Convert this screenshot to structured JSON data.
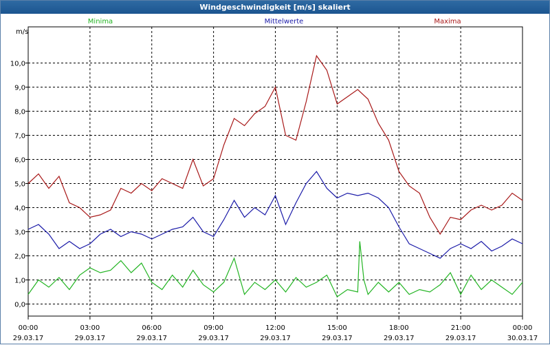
{
  "window": {
    "title": "Windgeschwindigkeit [m/s] skaliert"
  },
  "colors": {
    "min": "#22b422",
    "mean": "#1a1aa8",
    "max": "#a81818",
    "titlebar": "#1f5b96"
  },
  "chart_data": {
    "type": "line",
    "title": "Windgeschwindigkeit [m/s] skaliert",
    "ylabel": "m/s",
    "ylim": [
      -0.5,
      11.5
    ],
    "xlim_hours": [
      0,
      24
    ],
    "grid": true,
    "yticks": [
      "0,0",
      "1,0",
      "2,0",
      "3,0",
      "4,0",
      "5,0",
      "6,0",
      "7,0",
      "8,0",
      "9,0",
      "10,0"
    ],
    "xticks": [
      {
        "time": "00:00",
        "date": "29.03.17"
      },
      {
        "time": "03:00",
        "date": "29.03.17"
      },
      {
        "time": "06:00",
        "date": "29.03.17"
      },
      {
        "time": "09:00",
        "date": "29.03.17"
      },
      {
        "time": "12:00",
        "date": "29.03.17"
      },
      {
        "time": "15:00",
        "date": "29.03.17"
      },
      {
        "time": "18:00",
        "date": "29.03.17"
      },
      {
        "time": "21:00",
        "date": "29.03.17"
      },
      {
        "time": "00:00",
        "date": "30.03.17"
      }
    ],
    "legend": [
      "Minima",
      "Mittelwerte",
      "Maxima"
    ],
    "series": [
      {
        "name": "Minima",
        "key": "min",
        "x": [
          0,
          0.5,
          1,
          1.5,
          2,
          2.5,
          3,
          3.5,
          4,
          4.5,
          5,
          5.5,
          6,
          6.5,
          7,
          7.5,
          8,
          8.5,
          9,
          9.5,
          10,
          10.5,
          11,
          11.5,
          12,
          12.5,
          13,
          13.5,
          14,
          14.5,
          15,
          15.5,
          16,
          16.1,
          16.3,
          16.5,
          17,
          17.5,
          18,
          18.5,
          19,
          19.5,
          20,
          20.5,
          21,
          21.5,
          22,
          22.5,
          23,
          23.5,
          24
        ],
        "y": [
          0.4,
          1.0,
          0.7,
          1.1,
          0.6,
          1.2,
          1.5,
          1.3,
          1.4,
          1.8,
          1.3,
          1.7,
          0.9,
          0.6,
          1.2,
          0.7,
          1.4,
          0.8,
          0.5,
          0.9,
          1.9,
          0.4,
          0.9,
          0.6,
          1.0,
          0.5,
          1.1,
          0.7,
          0.9,
          1.2,
          0.3,
          0.6,
          0.5,
          2.6,
          1.0,
          0.4,
          0.9,
          0.5,
          0.9,
          0.4,
          0.6,
          0.5,
          0.8,
          1.3,
          0.4,
          1.2,
          0.6,
          1.0,
          0.7,
          0.4,
          0.9
        ]
      },
      {
        "name": "Mittelwerte",
        "key": "mean",
        "x": [
          0,
          0.5,
          1,
          1.5,
          2,
          2.5,
          3,
          3.5,
          4,
          4.5,
          5,
          5.5,
          6,
          6.5,
          7,
          7.5,
          8,
          8.5,
          9,
          9.5,
          10,
          10.5,
          11,
          11.5,
          12,
          12.5,
          13,
          13.5,
          14,
          14.5,
          15,
          15.5,
          16,
          16.5,
          17,
          17.5,
          18,
          18.5,
          19,
          19.5,
          20,
          20.5,
          21,
          21.5,
          22,
          22.5,
          23,
          23.5,
          24
        ],
        "y": [
          3.1,
          3.3,
          2.9,
          2.3,
          2.6,
          2.3,
          2.5,
          2.9,
          3.1,
          2.8,
          3.0,
          2.9,
          2.7,
          2.9,
          3.1,
          3.2,
          3.6,
          3.0,
          2.8,
          3.5,
          4.3,
          3.6,
          4.0,
          3.7,
          4.5,
          3.3,
          4.2,
          5.0,
          5.5,
          4.8,
          4.4,
          4.6,
          4.5,
          4.6,
          4.4,
          4.0,
          3.2,
          2.5,
          2.3,
          2.1,
          1.9,
          2.3,
          2.5,
          2.3,
          2.6,
          2.2,
          2.4,
          2.7,
          2.5
        ]
      },
      {
        "name": "Maxima",
        "key": "max",
        "x": [
          0,
          0.5,
          1,
          1.5,
          2,
          2.5,
          3,
          3.5,
          4,
          4.5,
          5,
          5.5,
          6,
          6.5,
          7,
          7.5,
          8,
          8.5,
          9,
          9.5,
          10,
          10.5,
          11,
          11.5,
          12,
          12.5,
          13,
          13.5,
          14,
          14.5,
          15,
          15.5,
          16,
          16.5,
          17,
          17.5,
          18,
          18.5,
          19,
          19.5,
          20,
          20.5,
          21,
          21.5,
          22,
          22.5,
          23,
          23.5,
          24
        ],
        "y": [
          5.0,
          5.4,
          4.8,
          5.3,
          4.2,
          4.0,
          3.6,
          3.7,
          3.9,
          4.8,
          4.6,
          5.0,
          4.7,
          5.2,
          5.0,
          4.8,
          6.0,
          4.9,
          5.2,
          6.6,
          7.7,
          7.4,
          7.9,
          8.2,
          9.0,
          7.0,
          6.8,
          8.4,
          10.3,
          9.7,
          8.3,
          8.6,
          8.9,
          8.5,
          7.5,
          6.8,
          5.5,
          4.9,
          4.6,
          3.6,
          2.9,
          3.6,
          3.5,
          3.9,
          4.1,
          3.9,
          4.1,
          4.6,
          4.3
        ]
      }
    ]
  }
}
